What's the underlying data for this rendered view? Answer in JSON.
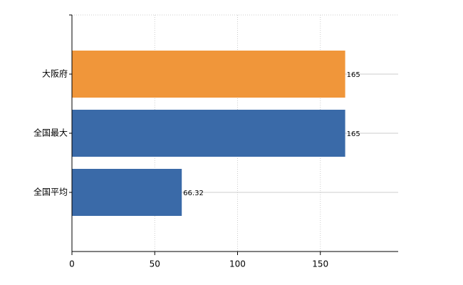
{
  "chart_data": {
    "type": "bar",
    "orientation": "horizontal",
    "categories": [
      "大阪府",
      "全国最大",
      "全国平均"
    ],
    "values": [
      165,
      165,
      66.32
    ],
    "colors": [
      "#f0963a",
      "#3a6aa8",
      "#3a6aa8"
    ],
    "xlim": [
      0,
      197
    ],
    "xticks": [
      0,
      50,
      100,
      150
    ],
    "grid": true
  }
}
